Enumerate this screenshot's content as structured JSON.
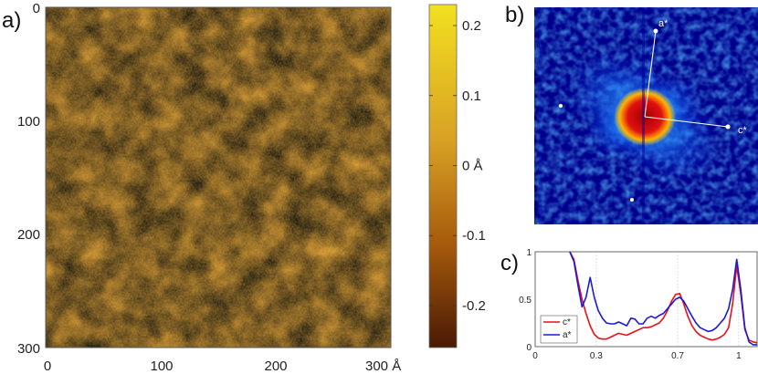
{
  "panels": {
    "a": {
      "tag": "a)"
    },
    "b": {
      "tag": "b)"
    },
    "c": {
      "tag": "c)"
    }
  },
  "chart_data": [
    {
      "type": "heatmap",
      "panel": "a",
      "x_ticks": [
        "0",
        "100",
        "200",
        "300 Å"
      ],
      "y_ticks": [
        "0",
        "100",
        "200",
        "300"
      ],
      "x_range": [
        0,
        300
      ],
      "y_range": [
        0,
        300
      ],
      "colorbar": {
        "ticks": [
          "0.2",
          "0.1",
          "0 Å",
          "-0.1",
          "-0.2"
        ],
        "tick_values": [
          0.2,
          0.1,
          0,
          -0.1,
          -0.2
        ],
        "range": [
          -0.26,
          0.23
        ],
        "colors": [
          "#4a1a04",
          "#a65a0c",
          "#d8a024",
          "#f2e020"
        ]
      }
    },
    {
      "type": "heatmap",
      "panel": "b",
      "annotations": [
        "a*",
        "c*"
      ]
    },
    {
      "type": "line",
      "panel": "c",
      "x_ticks": [
        "0",
        "0.3",
        "0.7",
        "1"
      ],
      "y_ticks": [
        "1",
        "0.5",
        "0"
      ],
      "xlim": [
        0,
        1.09
      ],
      "ylim": [
        0,
        1
      ],
      "legend_position": "bottom-left",
      "series": [
        {
          "name": "c*",
          "color": "#e8101a",
          "x": [
            0.17,
            0.19,
            0.21,
            0.23,
            0.25,
            0.27,
            0.29,
            0.31,
            0.33,
            0.35,
            0.37,
            0.39,
            0.41,
            0.43,
            0.45,
            0.47,
            0.49,
            0.51,
            0.53,
            0.55,
            0.57,
            0.59,
            0.61,
            0.63,
            0.65,
            0.67,
            0.69,
            0.71,
            0.73,
            0.75,
            0.77,
            0.79,
            0.81,
            0.83,
            0.85,
            0.87,
            0.89,
            0.91,
            0.93,
            0.95,
            0.97,
            0.99,
            1.01,
            1.03,
            1.05,
            1.07,
            1.09
          ],
          "y": [
            1.0,
            0.92,
            0.7,
            0.5,
            0.35,
            0.22,
            0.13,
            0.09,
            0.08,
            0.08,
            0.1,
            0.12,
            0.14,
            0.13,
            0.12,
            0.14,
            0.16,
            0.18,
            0.2,
            0.2,
            0.21,
            0.23,
            0.25,
            0.3,
            0.38,
            0.48,
            0.55,
            0.56,
            0.45,
            0.32,
            0.22,
            0.16,
            0.12,
            0.1,
            0.08,
            0.07,
            0.08,
            0.1,
            0.13,
            0.2,
            0.45,
            0.85,
            0.55,
            0.18,
            0.07,
            0.05,
            0.04
          ]
        },
        {
          "name": "a*",
          "color": "#1a1ad8",
          "x": [
            0.17,
            0.19,
            0.21,
            0.23,
            0.25,
            0.27,
            0.29,
            0.31,
            0.33,
            0.35,
            0.37,
            0.39,
            0.41,
            0.43,
            0.45,
            0.47,
            0.49,
            0.51,
            0.53,
            0.55,
            0.57,
            0.59,
            0.61,
            0.63,
            0.65,
            0.67,
            0.69,
            0.71,
            0.73,
            0.75,
            0.77,
            0.79,
            0.81,
            0.83,
            0.85,
            0.87,
            0.89,
            0.91,
            0.93,
            0.95,
            0.97,
            0.99,
            1.01,
            1.03,
            1.05,
            1.07,
            1.09
          ],
          "y": [
            1.0,
            0.9,
            0.65,
            0.42,
            0.52,
            0.73,
            0.52,
            0.38,
            0.3,
            0.25,
            0.24,
            0.24,
            0.26,
            0.24,
            0.22,
            0.3,
            0.29,
            0.24,
            0.24,
            0.3,
            0.32,
            0.3,
            0.33,
            0.35,
            0.4,
            0.45,
            0.5,
            0.52,
            0.48,
            0.4,
            0.32,
            0.25,
            0.2,
            0.18,
            0.16,
            0.17,
            0.2,
            0.25,
            0.3,
            0.4,
            0.6,
            0.92,
            0.6,
            0.2,
            0.05,
            0.02,
            0.02
          ]
        }
      ]
    }
  ]
}
